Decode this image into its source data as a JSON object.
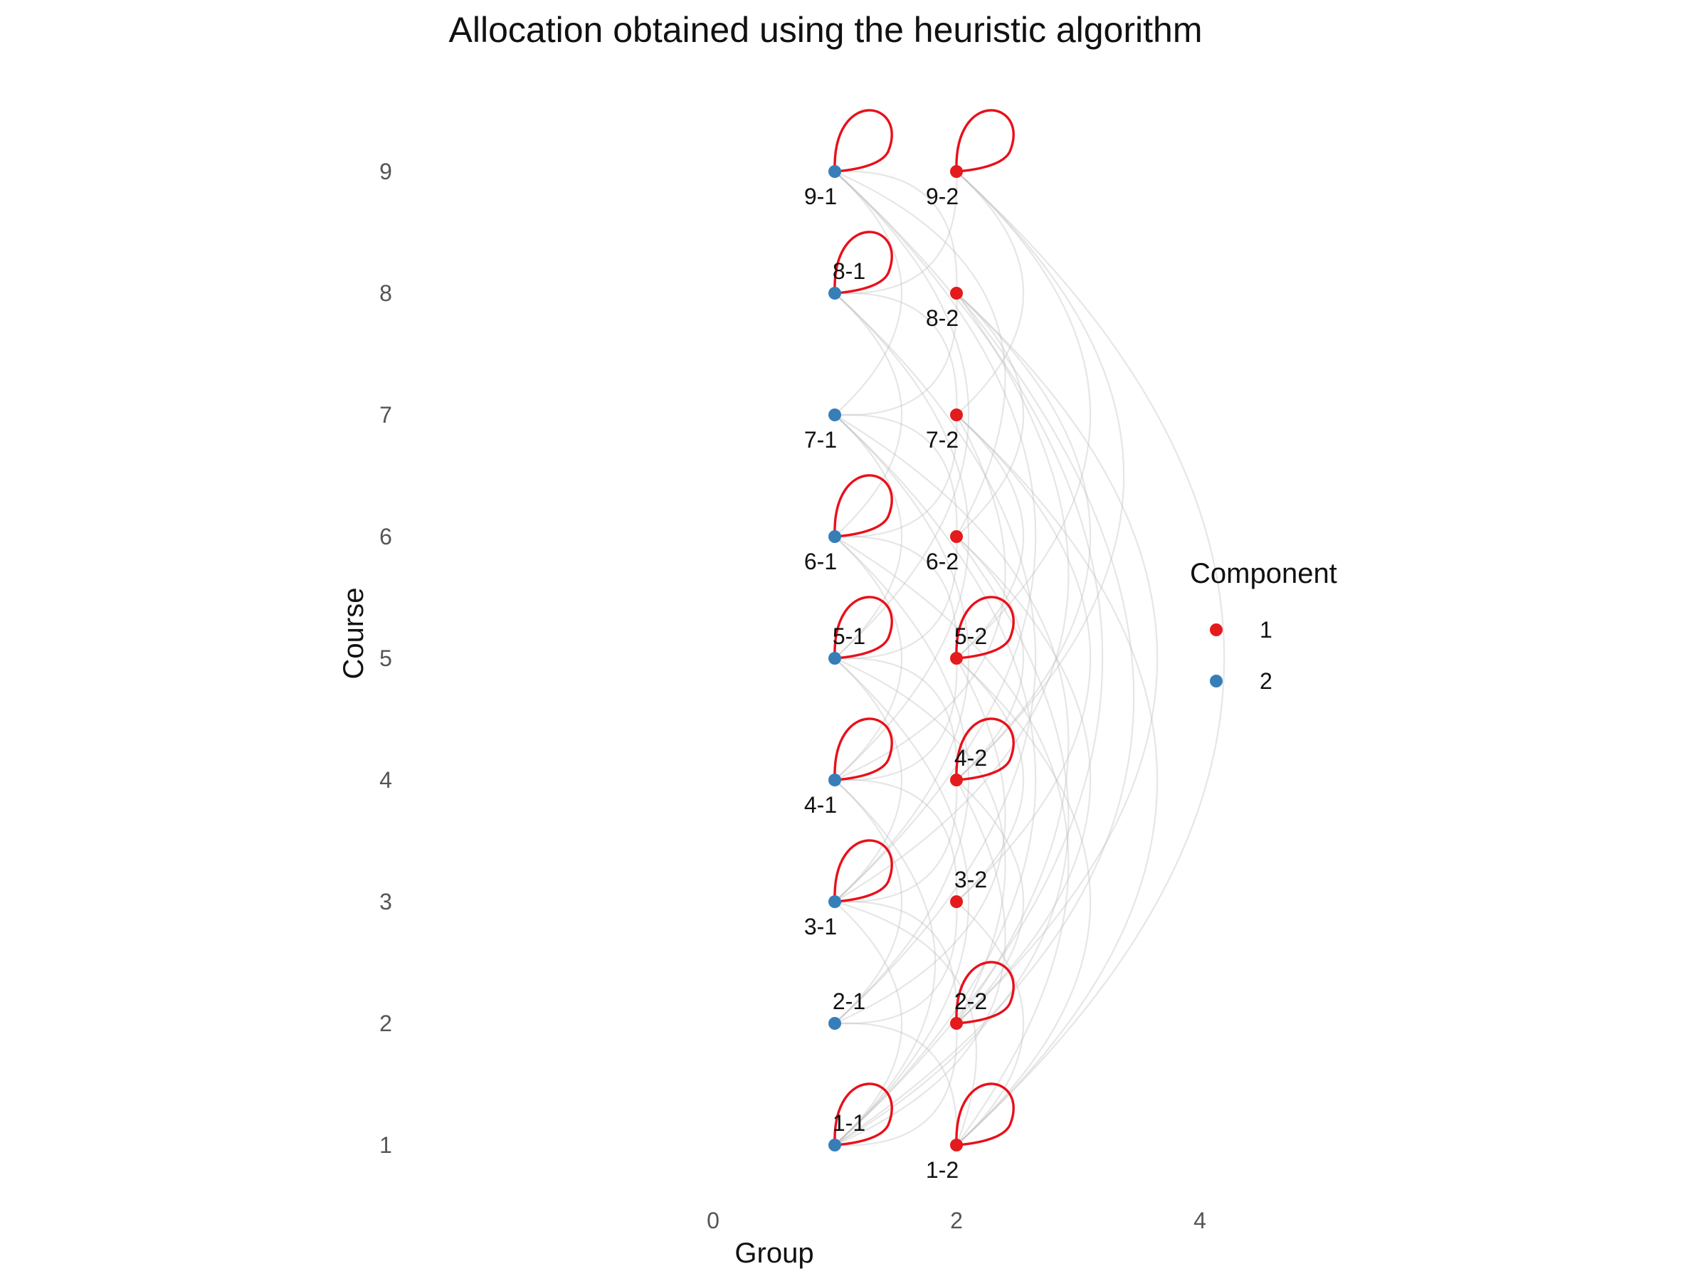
{
  "chart_data": {
    "type": "network",
    "title": "Allocation obtained using the heuristic algorithm",
    "xlabel": "Group",
    "ylabel": "Course",
    "xlim": [
      -1.5,
      5.6
    ],
    "ylim": [
      0.3,
      9.7
    ],
    "x_ticks": [
      "0",
      "2",
      "4"
    ],
    "y_ticks": [
      "1",
      "2",
      "3",
      "4",
      "5",
      "6",
      "7",
      "8",
      "9"
    ],
    "grid": false,
    "legend": {
      "title": "Component",
      "position": "right",
      "entries": [
        {
          "label": "1",
          "color": "#E41A1C"
        },
        {
          "label": "2",
          "color": "#377EB8"
        }
      ]
    },
    "nodes": [
      {
        "label": "1-1",
        "group": 1,
        "course": 1,
        "component": "2",
        "label_pos": "above",
        "self_loop": true
      },
      {
        "label": "1-2",
        "group": 2,
        "course": 1,
        "component": "1",
        "label_pos": "below",
        "self_loop": true
      },
      {
        "label": "2-1",
        "group": 1,
        "course": 2,
        "component": "2",
        "label_pos": "above",
        "self_loop": false
      },
      {
        "label": "2-2",
        "group": 2,
        "course": 2,
        "component": "1",
        "label_pos": "above",
        "self_loop": true
      },
      {
        "label": "3-1",
        "group": 1,
        "course": 3,
        "component": "2",
        "label_pos": "below",
        "self_loop": true
      },
      {
        "label": "3-2",
        "group": 2,
        "course": 3,
        "component": "1",
        "label_pos": "above",
        "self_loop": false
      },
      {
        "label": "4-1",
        "group": 1,
        "course": 4,
        "component": "2",
        "label_pos": "below",
        "self_loop": true
      },
      {
        "label": "4-2",
        "group": 2,
        "course": 4,
        "component": "1",
        "label_pos": "above",
        "self_loop": true
      },
      {
        "label": "5-1",
        "group": 1,
        "course": 5,
        "component": "2",
        "label_pos": "above",
        "self_loop": true
      },
      {
        "label": "5-2",
        "group": 2,
        "course": 5,
        "component": "1",
        "label_pos": "above",
        "self_loop": true
      },
      {
        "label": "6-1",
        "group": 1,
        "course": 6,
        "component": "2",
        "label_pos": "below",
        "self_loop": true
      },
      {
        "label": "6-2",
        "group": 2,
        "course": 6,
        "component": "1",
        "label_pos": "below",
        "self_loop": false
      },
      {
        "label": "7-1",
        "group": 1,
        "course": 7,
        "component": "2",
        "label_pos": "below",
        "self_loop": false
      },
      {
        "label": "7-2",
        "group": 2,
        "course": 7,
        "component": "1",
        "label_pos": "below",
        "self_loop": false
      },
      {
        "label": "8-1",
        "group": 1,
        "course": 8,
        "component": "2",
        "label_pos": "above",
        "self_loop": true
      },
      {
        "label": "8-2",
        "group": 2,
        "course": 8,
        "component": "1",
        "label_pos": "below",
        "self_loop": false
      },
      {
        "label": "9-1",
        "group": 1,
        "course": 9,
        "component": "2",
        "label_pos": "below",
        "self_loop": true
      },
      {
        "label": "9-2",
        "group": 2,
        "course": 9,
        "component": "1",
        "label_pos": "below",
        "self_loop": true
      }
    ],
    "edges": [
      {
        "from": "1-1",
        "to": "3-1"
      },
      {
        "from": "1-1",
        "to": "4-1"
      },
      {
        "from": "1-1",
        "to": "5-1"
      },
      {
        "from": "1-1",
        "to": "7-1"
      },
      {
        "from": "1-1",
        "to": "9-1"
      },
      {
        "from": "1-1",
        "to": "2-2"
      },
      {
        "from": "1-1",
        "to": "4-2"
      },
      {
        "from": "1-1",
        "to": "6-2"
      },
      {
        "from": "1-1",
        "to": "8-2"
      },
      {
        "from": "1-2",
        "to": "2-1"
      },
      {
        "from": "1-2",
        "to": "3-1"
      },
      {
        "from": "1-2",
        "to": "3-2"
      },
      {
        "from": "1-2",
        "to": "5-2"
      },
      {
        "from": "1-2",
        "to": "7-2"
      },
      {
        "from": "1-2",
        "to": "9-2"
      },
      {
        "from": "1-2",
        "to": "6-1"
      },
      {
        "from": "2-1",
        "to": "4-1"
      },
      {
        "from": "2-1",
        "to": "6-1"
      },
      {
        "from": "2-1",
        "to": "8-1"
      },
      {
        "from": "2-1",
        "to": "3-2"
      },
      {
        "from": "2-1",
        "to": "5-2"
      },
      {
        "from": "2-2",
        "to": "4-2"
      },
      {
        "from": "2-2",
        "to": "6-2"
      },
      {
        "from": "2-2",
        "to": "8-2"
      },
      {
        "from": "2-2",
        "to": "3-1"
      },
      {
        "from": "2-2",
        "to": "5-1"
      },
      {
        "from": "2-2",
        "to": "7-1"
      },
      {
        "from": "3-1",
        "to": "5-1"
      },
      {
        "from": "3-1",
        "to": "7-1"
      },
      {
        "from": "3-1",
        "to": "9-1"
      },
      {
        "from": "3-1",
        "to": "8-2"
      },
      {
        "from": "3-1",
        "to": "4-2"
      },
      {
        "from": "3-2",
        "to": "5-2"
      },
      {
        "from": "3-2",
        "to": "7-2"
      },
      {
        "from": "3-2",
        "to": "4-1"
      },
      {
        "from": "4-1",
        "to": "6-1"
      },
      {
        "from": "4-1",
        "to": "8-1"
      },
      {
        "from": "4-1",
        "to": "5-2"
      },
      {
        "from": "4-1",
        "to": "7-2"
      },
      {
        "from": "4-2",
        "to": "6-2"
      },
      {
        "from": "4-2",
        "to": "8-2"
      },
      {
        "from": "4-2",
        "to": "5-1"
      },
      {
        "from": "4-2",
        "to": "9-2"
      },
      {
        "from": "5-1",
        "to": "7-1"
      },
      {
        "from": "5-1",
        "to": "9-1"
      },
      {
        "from": "5-1",
        "to": "6-2"
      },
      {
        "from": "5-2",
        "to": "7-2"
      },
      {
        "from": "5-2",
        "to": "9-2"
      },
      {
        "from": "5-2",
        "to": "6-1"
      },
      {
        "from": "6-1",
        "to": "8-1"
      },
      {
        "from": "6-1",
        "to": "7-2"
      },
      {
        "from": "6-2",
        "to": "8-2"
      },
      {
        "from": "6-2",
        "to": "7-1"
      },
      {
        "from": "6-2",
        "to": "9-1"
      },
      {
        "from": "7-1",
        "to": "9-1"
      },
      {
        "from": "7-1",
        "to": "8-2"
      },
      {
        "from": "7-2",
        "to": "9-2"
      },
      {
        "from": "7-2",
        "to": "8-1"
      },
      {
        "from": "8-1",
        "to": "9-2"
      },
      {
        "from": "8-2",
        "to": "9-1"
      }
    ]
  }
}
